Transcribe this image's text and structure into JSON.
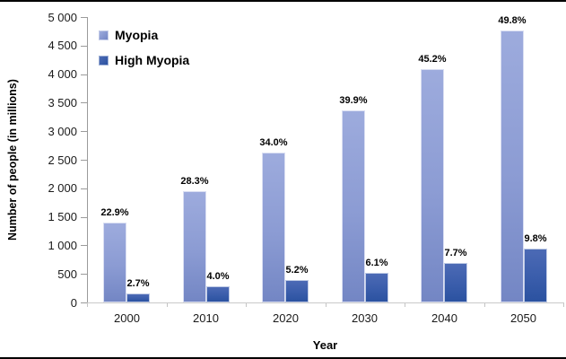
{
  "chart_data": {
    "type": "bar",
    "title": "",
    "xlabel": "Year",
    "ylabel": "Number of people (in millions)",
    "categories": [
      "2000",
      "2010",
      "2020",
      "2030",
      "2040",
      "2050"
    ],
    "series": [
      {
        "name": "Myopia",
        "values": [
          1406,
          1950,
          2620,
          3361,
          4089,
          4758
        ],
        "point_labels": [
          "22.9%",
          "28.3%",
          "34.0%",
          "39.9%",
          "45.2%",
          "49.8%"
        ],
        "color_top": "#9dabdd",
        "color_bottom": "#7386c4",
        "legend_color": "#95a3d7"
      },
      {
        "name": "High Myopia",
        "values": [
          163,
          277,
          399,
          516,
          696,
          938
        ],
        "point_labels": [
          "2.7%",
          "4.0%",
          "5.2%",
          "6.1%",
          "7.7%",
          "9.8%"
        ],
        "color_top": "#4c6ab5",
        "color_bottom": "#2b52a0",
        "legend_color": "#3a62ae"
      }
    ],
    "ylim": [
      0,
      5000
    ],
    "ytick_step": 500,
    "ytick_labels": [
      "0",
      "500",
      "1 000",
      "1 500",
      "2 000",
      "2 500",
      "3 000",
      "3 500",
      "4 000",
      "4 500",
      "5 000"
    ],
    "legend_position": "top-left",
    "grid": false,
    "colors": {
      "y_axis_line": "#9b9b9b",
      "y_tick": "#9b9b9b",
      "x_axis_line": "#c9c9c9",
      "x_tick": "#c4c4c4",
      "frame_edge": "#000000",
      "background": "#ffffff"
    }
  }
}
